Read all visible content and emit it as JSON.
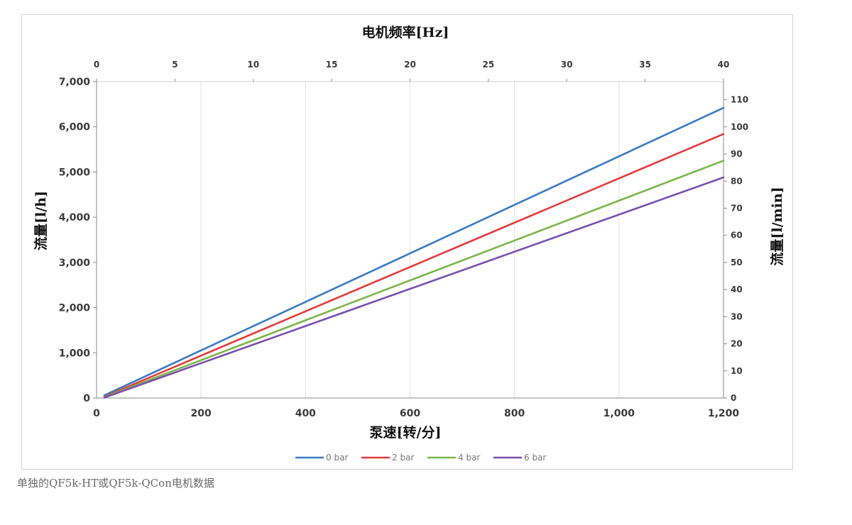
{
  "caption": "单独的QF5k-HT或QF5k-QCon电机数据",
  "chart_data": {
    "type": "line",
    "title": "",
    "xlabel": "泵速[转/分]",
    "ylabel": "流量[l/h]",
    "x2label": "电机频率[Hz]",
    "y2label": "流量[l/min]",
    "xlim": [
      0,
      1200
    ],
    "ylim": [
      0,
      7000
    ],
    "x2lim": [
      0,
      40
    ],
    "y2lim": [
      0,
      116.7
    ],
    "x_ticks": [
      "0",
      "200",
      "400",
      "600",
      "800",
      "1,000",
      "1,200"
    ],
    "y_ticks": [
      "0",
      "1,000",
      "2,000",
      "3,000",
      "4,000",
      "5,000",
      "6,000",
      "7,000"
    ],
    "x2_ticks": [
      "0",
      "5",
      "10",
      "15",
      "20",
      "25",
      "30",
      "35",
      "40"
    ],
    "y2_ticks": [
      "0",
      "10",
      "20",
      "30",
      "40",
      "50",
      "60",
      "70",
      "80",
      "90",
      "100",
      "110"
    ],
    "grid": "vertical",
    "legend": "bottom",
    "series": [
      {
        "name": "0 bar",
        "color": "#3a7ac4",
        "x": [
          15,
          1200
        ],
        "y": [
          60,
          6420
        ]
      },
      {
        "name": "2 bar",
        "color": "#e33b3b",
        "x": [
          15,
          1200
        ],
        "y": [
          30,
          5840
        ]
      },
      {
        "name": "4 bar",
        "color": "#7ab648",
        "x": [
          15,
          1200
        ],
        "y": [
          20,
          5250
        ]
      },
      {
        "name": "6 bar",
        "color": "#7a4fb0",
        "x": [
          15,
          1200
        ],
        "y": [
          10,
          4880
        ]
      }
    ]
  }
}
